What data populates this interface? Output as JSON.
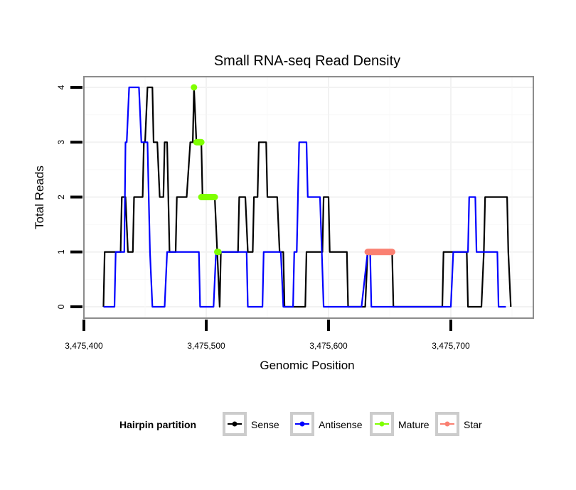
{
  "chart_data": {
    "type": "line",
    "title": "Small RNA-seq Read Density",
    "xlabel": "Genomic Position",
    "ylabel": "Total Reads",
    "xlim": [
      3475384,
      3475767
    ],
    "ylim": [
      -0.2,
      4.2
    ],
    "x_ticks": [
      3475400,
      3475500,
      3475600,
      3475700
    ],
    "x_tick_labels": [
      "3,475,400",
      "3,475,500",
      "3,475,600",
      "3,475,700"
    ],
    "y_ticks": [
      0,
      1,
      2,
      3,
      4
    ],
    "y_tick_labels": [
      "0",
      "1",
      "2",
      "3",
      "4"
    ],
    "grid": true,
    "legend": {
      "title": "Hairpin partition",
      "placement": "bottom",
      "entries": [
        {
          "label": "Sense",
          "color": "#000000"
        },
        {
          "label": "Antisense",
          "color": "#0000ff"
        },
        {
          "label": "Mature",
          "color": "#7fff00"
        },
        {
          "label": "Star",
          "color": "#fa8072"
        }
      ]
    },
    "series": [
      {
        "name": "Sense",
        "color": "#000000",
        "points": [
          [
            3475416,
            0
          ],
          [
            3475417,
            1
          ],
          [
            3475430,
            1
          ],
          [
            3475431,
            2
          ],
          [
            3475434,
            2
          ],
          [
            3475436,
            1
          ],
          [
            3475440,
            1
          ],
          [
            3475441,
            2
          ],
          [
            3475448,
            2
          ],
          [
            3475449,
            3
          ],
          [
            3475450,
            3
          ],
          [
            3475452,
            4
          ],
          [
            3475456,
            4
          ],
          [
            3475457,
            3
          ],
          [
            3475460,
            3
          ],
          [
            3475462,
            2
          ],
          [
            3475465,
            2
          ],
          [
            3475466,
            3
          ],
          [
            3475468,
            3
          ],
          [
            3475469,
            2
          ],
          [
            3475470,
            1
          ],
          [
            3475475,
            1
          ],
          [
            3475476,
            2
          ],
          [
            3475484,
            2
          ],
          [
            3475487,
            3
          ],
          [
            3475489,
            3
          ],
          [
            3475490,
            4
          ],
          [
            3475492,
            3
          ],
          [
            3475496,
            3
          ],
          [
            3475497,
            2
          ],
          [
            3475507,
            2
          ],
          [
            3475509,
            1
          ],
          [
            3475511,
            0
          ],
          [
            3475512,
            1
          ],
          [
            3475526,
            1
          ],
          [
            3475527,
            2
          ],
          [
            3475532,
            2
          ],
          [
            3475534,
            1
          ],
          [
            3475538,
            1
          ],
          [
            3475539,
            2
          ],
          [
            3475542,
            2
          ],
          [
            3475543,
            3
          ],
          [
            3475549,
            3
          ],
          [
            3475550,
            2
          ],
          [
            3475558,
            2
          ],
          [
            3475560,
            1
          ],
          [
            3475563,
            1
          ],
          [
            3475564,
            0
          ],
          [
            3475581,
            0
          ],
          [
            3475582,
            1
          ],
          [
            3475595,
            1
          ],
          [
            3475596,
            2
          ],
          [
            3475600,
            2
          ],
          [
            3475601,
            1
          ],
          [
            3475615,
            1
          ],
          [
            3475616,
            0
          ],
          [
            3475630,
            0
          ],
          [
            3475632,
            1
          ],
          [
            3475652,
            1
          ],
          [
            3475653,
            0
          ],
          [
            3475693,
            0
          ],
          [
            3475694,
            1
          ],
          [
            3475713,
            1
          ],
          [
            3475714,
            0
          ],
          [
            3475725,
            0
          ],
          [
            3475727,
            1
          ],
          [
            3475728,
            2
          ],
          [
            3475746,
            2
          ],
          [
            3475747,
            1
          ],
          [
            3475749,
            0
          ]
        ]
      },
      {
        "name": "Antisense",
        "color": "#0000ff",
        "points": [
          [
            3475416,
            0
          ],
          [
            3475425,
            0
          ],
          [
            3475426,
            1
          ],
          [
            3475433,
            1
          ],
          [
            3475434,
            3
          ],
          [
            3475435,
            3
          ],
          [
            3475437,
            4
          ],
          [
            3475445,
            4
          ],
          [
            3475447,
            3
          ],
          [
            3475452,
            3
          ],
          [
            3475454,
            1
          ],
          [
            3475456,
            0
          ],
          [
            3475466,
            0
          ],
          [
            3475468,
            1
          ],
          [
            3475494,
            1
          ],
          [
            3475495,
            0
          ],
          [
            3475506,
            0
          ],
          [
            3475508,
            1
          ],
          [
            3475533,
            1
          ],
          [
            3475534,
            0
          ],
          [
            3475546,
            0
          ],
          [
            3475547,
            1
          ],
          [
            3475561,
            1
          ],
          [
            3475563,
            0
          ],
          [
            3475571,
            0
          ],
          [
            3475572,
            1
          ],
          [
            3475574,
            1
          ],
          [
            3475575,
            2
          ],
          [
            3475576,
            3
          ],
          [
            3475582,
            3
          ],
          [
            3475583,
            2
          ],
          [
            3475593,
            2
          ],
          [
            3475596,
            0
          ],
          [
            3475627,
            0
          ],
          [
            3475632,
            1
          ],
          [
            3475634,
            1
          ],
          [
            3475635,
            0
          ],
          [
            3475700,
            0
          ],
          [
            3475702,
            1
          ],
          [
            3475714,
            1
          ],
          [
            3475715,
            2
          ],
          [
            3475720,
            2
          ],
          [
            3475721,
            1
          ],
          [
            3475738,
            1
          ],
          [
            3475739,
            0
          ],
          [
            3475745,
            0
          ]
        ]
      },
      {
        "name": "Mature",
        "color": "#7fff00",
        "segments": [
          {
            "x": [
              3475490,
              3475490
            ],
            "y": 4
          },
          {
            "x": [
              3475492,
              3475496
            ],
            "y": 3
          },
          {
            "x": [
              3475496,
              3475507
            ],
            "y": 2
          },
          {
            "x": [
              3475509,
              3475510
            ],
            "y": 1
          }
        ]
      },
      {
        "name": "Star",
        "color": "#fa8072",
        "segments": [
          {
            "x": [
              3475632,
              3475652
            ],
            "y": 1
          }
        ]
      }
    ]
  }
}
